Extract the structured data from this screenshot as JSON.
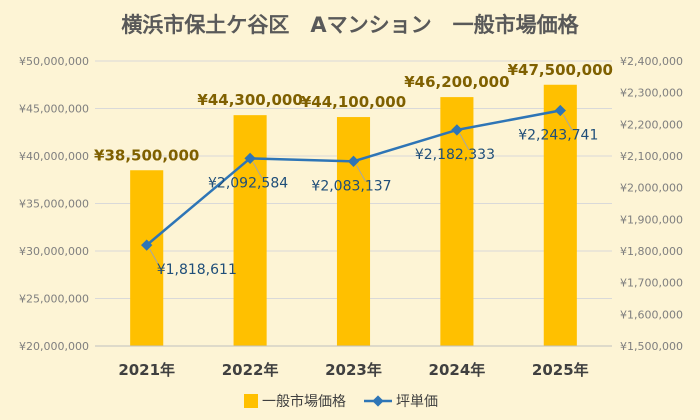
{
  "chart_data": {
    "type": "bar",
    "title": "横浜市保土ケ谷区　Aマンション　一般市場価格",
    "categories": [
      "2021年",
      "2022年",
      "2023年",
      "2024年",
      "2025年"
    ],
    "series": [
      {
        "name": "一般市場価格",
        "type": "bar",
        "axis": "left",
        "color": "#ffc000",
        "values": [
          38500000,
          44300000,
          44100000,
          46200000,
          47500000
        ],
        "labels": [
          "¥38,500,000",
          "¥44,300,000",
          "¥44,100,000",
          "¥46,200,000",
          "¥47,500,000"
        ]
      },
      {
        "name": "坪単価",
        "type": "line",
        "axis": "right",
        "color": "#2e75b6",
        "values": [
          1818611,
          2092584,
          2083137,
          2182333,
          2243741
        ],
        "labels": [
          "¥1,818,611",
          "¥2,092,584",
          "¥2,083,137",
          "¥2,182,333",
          "¥2,243,741"
        ]
      }
    ],
    "y_left": {
      "range": [
        20000000,
        50000000
      ],
      "ticks": [
        "¥20,000,000",
        "¥25,000,000",
        "¥30,000,000",
        "¥35,000,000",
        "¥40,000,000",
        "¥45,000,000",
        "¥50,000,000"
      ]
    },
    "y_right": {
      "range": [
        1500000,
        2400000
      ],
      "ticks": [
        "¥1,500,000",
        "¥1,600,000",
        "¥1,700,000",
        "¥1,800,000",
        "¥1,900,000",
        "¥2,000,000",
        "¥2,100,000",
        "¥2,200,000",
        "¥2,300,000",
        "¥2,400,000"
      ]
    },
    "grid": true,
    "legend_position": "bottom",
    "background_color": "#fdf4d5",
    "gridline_color": "#d9d9d9",
    "leader_line_color": "#a6a6a6"
  }
}
